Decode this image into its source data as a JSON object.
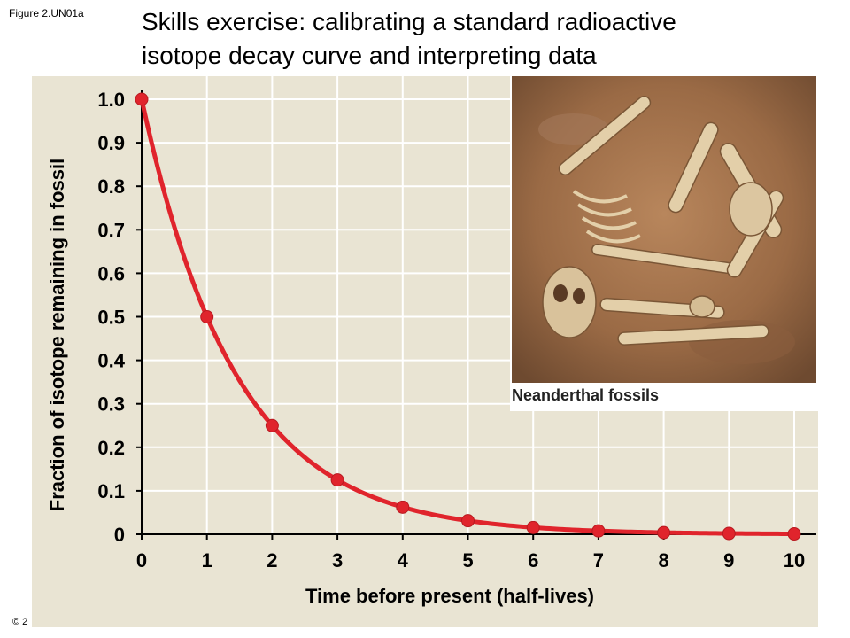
{
  "figure_label": "Figure 2.UN01a",
  "title_line1": "Skills exercise: calibrating a standard radioactive",
  "title_line2": "isotope decay curve and interpreting data",
  "copyright": "© 2",
  "photo_caption": "Neanderthal fossils",
  "colors": {
    "curve": "#e0242c",
    "panel": "#e9e4d3",
    "grid": "#ffffff",
    "axis": "#000000"
  },
  "chart_data": {
    "type": "line",
    "title": "",
    "xlabel": "Time before present (half-lives)",
    "ylabel": "Fraction of isotope remaining in fossil",
    "xlim": [
      0,
      10
    ],
    "ylim": [
      0,
      1.0
    ],
    "x_ticks": [
      "0",
      "1",
      "2",
      "3",
      "4",
      "5",
      "6",
      "7",
      "8",
      "9",
      "10"
    ],
    "y_ticks": [
      "0",
      "0.1",
      "0.2",
      "0.3",
      "0.4",
      "0.5",
      "0.6",
      "0.7",
      "0.8",
      "0.9",
      "1.0"
    ],
    "grid": true,
    "series": [
      {
        "x": [
          0,
          1,
          2,
          3,
          4,
          5,
          6,
          7,
          8,
          9,
          10
        ],
        "y": [
          1.0,
          0.5,
          0.25,
          0.125,
          0.0625,
          0.03125,
          0.015625,
          0.0078125,
          0.00390625,
          0.001953125,
          0.0009765625
        ]
      }
    ]
  }
}
